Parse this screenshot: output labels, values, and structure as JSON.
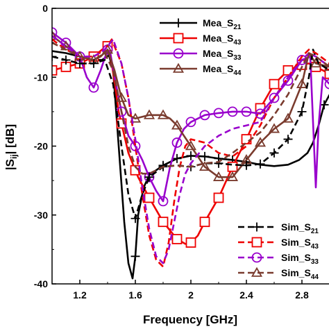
{
  "chart_data": {
    "type": "line",
    "title": "",
    "xlabel": "Frequency [GHz]",
    "ylabel_main": "|S",
    "ylabel_sub": "ij",
    "ylabel_tail": "| [dB]",
    "xlim": [
      1.0,
      3.0
    ],
    "ylim": [
      -40,
      0
    ],
    "x_ticks": [
      1.2,
      1.6,
      2.0,
      2.4,
      2.8
    ],
    "x_tick_labels": [
      "1.2",
      "1.6",
      "2",
      "2.4",
      "2.8"
    ],
    "y_ticks": [
      0,
      -10,
      -20,
      -30,
      -40
    ],
    "y_tick_labels": [
      "0",
      "-10",
      "-20",
      "-30",
      "-40"
    ],
    "grid": false,
    "legends": [
      {
        "position": "top-right",
        "series": [
          "mea_s21",
          "mea_s43",
          "mea_s33",
          "mea_s44"
        ]
      },
      {
        "position": "bottom-right",
        "series": [
          "sim_s21",
          "sim_s43",
          "sim_s33",
          "sim_s44"
        ]
      }
    ],
    "series": [
      {
        "id": "mea_s21",
        "name": "Mea_S",
        "sub": "21",
        "color": "#000000",
        "dash": "solid",
        "marker": "plus",
        "x": [
          1.0,
          1.1,
          1.2,
          1.3,
          1.36,
          1.41,
          1.44,
          1.48,
          1.52,
          1.55,
          1.58,
          1.6,
          1.62,
          1.66,
          1.7,
          1.8,
          1.9,
          2.0,
          2.1,
          2.2,
          2.3,
          2.4,
          2.5,
          2.6,
          2.7,
          2.78,
          2.84,
          2.88,
          2.92,
          2.96,
          3.0
        ],
        "y": [
          -6.2,
          -6.5,
          -7.0,
          -7.5,
          -7.5,
          -6.8,
          -9.0,
          -20.0,
          -31.0,
          -37.0,
          -39.2,
          -36.0,
          -30.0,
          -26.0,
          -24.2,
          -22.8,
          -21.8,
          -21.4,
          -21.5,
          -21.8,
          -22.0,
          -22.3,
          -22.7,
          -22.9,
          -22.7,
          -22.0,
          -21.0,
          -19.5,
          -17.0,
          -14.0,
          -12.5
        ],
        "marker_x": [
          1.3,
          1.6,
          1.8,
          1.9,
          2.0,
          2.1,
          2.2,
          2.3,
          2.4,
          2.96
        ]
      },
      {
        "id": "mea_s43",
        "name": "Mea_S",
        "sub": "43",
        "color": "#ee0000",
        "dash": "solid",
        "marker": "square",
        "x": [
          1.0,
          1.1,
          1.2,
          1.3,
          1.36,
          1.4,
          1.43,
          1.48,
          1.55,
          1.62,
          1.7,
          1.8,
          1.9,
          1.96,
          2.0,
          2.05,
          2.1,
          2.2,
          2.3,
          2.4,
          2.5,
          2.6,
          2.7,
          2.8,
          2.85,
          2.9,
          2.95,
          3.0
        ],
        "y": [
          -9.0,
          -8.5,
          -8.0,
          -7.0,
          -6.0,
          -5.5,
          -8.0,
          -15.0,
          -21.0,
          -24.5,
          -27.5,
          -31.0,
          -33.5,
          -34.2,
          -34.0,
          -33.0,
          -31.0,
          -27.5,
          -23.0,
          -19.0,
          -14.5,
          -11.0,
          -9.0,
          -8.2,
          -8.0,
          -8.5,
          -9.0,
          -9.5
        ],
        "marker_x": [
          1.0,
          1.1,
          1.2,
          1.3,
          1.4,
          1.5,
          1.6,
          1.7,
          1.8,
          1.9,
          2.0,
          2.1,
          2.2,
          2.3,
          2.4,
          2.5,
          2.6,
          2.7,
          2.8,
          2.9,
          3.0
        ]
      },
      {
        "id": "mea_s33",
        "name": "Mea_S",
        "sub": "33",
        "color": "#9900cc",
        "dash": "solid",
        "marker": "circle",
        "x": [
          1.0,
          1.1,
          1.2,
          1.25,
          1.3,
          1.35,
          1.4,
          1.42,
          1.45,
          1.5,
          1.55,
          1.6,
          1.65,
          1.7,
          1.75,
          1.8,
          1.85,
          1.9,
          1.95,
          2.0,
          2.1,
          2.2,
          2.3,
          2.4,
          2.5,
          2.6,
          2.7,
          2.8,
          2.86,
          2.9,
          2.92,
          2.95,
          3.0
        ],
        "y": [
          -3.5,
          -5.0,
          -7.0,
          -10.0,
          -11.5,
          -9.0,
          -6.0,
          -6.5,
          -10.0,
          -15.0,
          -18.5,
          -20.0,
          -22.0,
          -24.5,
          -26.5,
          -28.0,
          -23.0,
          -19.5,
          -17.5,
          -16.5,
          -15.5,
          -15.2,
          -15.0,
          -15.0,
          -15.3,
          -13.0,
          -10.5,
          -7.5,
          -7.0,
          -26.0,
          -17.0,
          -10.0,
          -11.0
        ],
        "marker_x": [
          1.0,
          1.1,
          1.2,
          1.3,
          1.4,
          1.5,
          1.6,
          1.7,
          1.8,
          1.9,
          2.0,
          2.1,
          2.2,
          2.3,
          2.4,
          2.5,
          2.6,
          2.7,
          2.8,
          3.0
        ]
      },
      {
        "id": "mea_s44",
        "name": "Mea_S",
        "sub": "44",
        "color": "#7a3b2e",
        "dash": "solid",
        "marker": "triangle",
        "x": [
          1.0,
          1.1,
          1.2,
          1.3,
          1.35,
          1.4,
          1.45,
          1.5,
          1.55,
          1.6,
          1.7,
          1.8,
          1.85,
          1.9,
          2.0,
          2.1,
          2.2,
          2.3,
          2.4,
          2.5,
          2.6,
          2.7,
          2.8,
          2.85,
          2.9,
          3.0
        ],
        "y": [
          -4.0,
          -5.5,
          -7.0,
          -7.5,
          -7.0,
          -6.0,
          -9.0,
          -13.0,
          -15.5,
          -16.0,
          -15.5,
          -15.5,
          -16.0,
          -17.0,
          -20.0,
          -23.0,
          -24.5,
          -24.5,
          -22.0,
          -19.5,
          -17.5,
          -16.0,
          -11.0,
          -6.5,
          -8.0,
          -8.5
        ],
        "marker_x": [
          1.0,
          1.1,
          1.2,
          1.3,
          1.4,
          1.5,
          1.6,
          1.7,
          1.8,
          1.9,
          2.0,
          2.1,
          2.2,
          2.3,
          2.4,
          2.5,
          2.6,
          2.7,
          2.8,
          2.9,
          3.0
        ]
      },
      {
        "id": "sim_s21",
        "name": "Sim_S",
        "sub": "21",
        "color": "#000000",
        "dash": "dash",
        "marker": "plus",
        "x": [
          1.0,
          1.1,
          1.2,
          1.3,
          1.38,
          1.44,
          1.5,
          1.55,
          1.6,
          1.65,
          1.7,
          1.8,
          1.9,
          2.0,
          2.1,
          2.2,
          2.3,
          2.4,
          2.5,
          2.6,
          2.7,
          2.8,
          2.85,
          2.88,
          2.92,
          3.0
        ],
        "y": [
          -7.0,
          -7.5,
          -8.0,
          -8.0,
          -7.5,
          -11.0,
          -20.0,
          -27.0,
          -30.5,
          -27.0,
          -24.5,
          -23.0,
          -22.8,
          -23.0,
          -22.5,
          -22.5,
          -22.7,
          -22.8,
          -22.6,
          -21.0,
          -19.0,
          -15.0,
          -10.0,
          -6.0,
          -8.0,
          -9.0
        ],
        "marker_x": [
          1.0,
          1.1,
          1.2,
          1.3,
          1.6,
          1.7,
          1.8,
          2.0,
          2.2,
          2.4,
          2.5,
          2.6,
          2.7,
          2.8
        ]
      },
      {
        "id": "sim_s43",
        "name": "Sim_S",
        "sub": "43",
        "color": "#ee0000",
        "dash": "dash",
        "marker": "square",
        "x": [
          1.0,
          1.1,
          1.2,
          1.3,
          1.38,
          1.43,
          1.5,
          1.55,
          1.6,
          1.65,
          1.7,
          1.75,
          1.8,
          1.84,
          1.88,
          1.92,
          1.96,
          2.0,
          2.1,
          2.2,
          2.3,
          2.4,
          2.5,
          2.6,
          2.7,
          2.8,
          2.85,
          2.9,
          3.0
        ],
        "y": [
          -4.5,
          -6.0,
          -7.0,
          -7.0,
          -6.0,
          -4.5,
          -8.0,
          -13.0,
          -20.0,
          -27.0,
          -33.0,
          -36.5,
          -37.5,
          -34.0,
          -28.0,
          -23.0,
          -20.0,
          -19.0,
          -19.5,
          -21.0,
          -21.5,
          -20.0,
          -17.0,
          -13.0,
          -10.0,
          -7.0,
          -6.0,
          -6.5,
          -8.0
        ]
      },
      {
        "id": "sim_s33",
        "name": "Sim_S",
        "sub": "33",
        "color": "#9900cc",
        "dash": "dash",
        "marker": "circle",
        "x": [
          1.0,
          1.1,
          1.2,
          1.3,
          1.38,
          1.44,
          1.5,
          1.55,
          1.6,
          1.65,
          1.7,
          1.75,
          1.8,
          1.84,
          1.88,
          1.92,
          1.96,
          2.0,
          2.1,
          2.2,
          2.3,
          2.4,
          2.5,
          2.6,
          2.7,
          2.8,
          2.85,
          2.9,
          3.0
        ],
        "y": [
          -4.0,
          -5.5,
          -7.0,
          -7.0,
          -6.0,
          -4.5,
          -8.0,
          -13.0,
          -19.0,
          -26.0,
          -32.0,
          -36.0,
          -37.0,
          -35.0,
          -31.0,
          -27.0,
          -24.0,
          -22.5,
          -20.0,
          -18.5,
          -17.5,
          -17.0,
          -16.5,
          -13.0,
          -10.0,
          -7.5,
          -6.5,
          -7.0,
          -8.5
        ]
      },
      {
        "id": "sim_s44",
        "name": "Sim_S",
        "sub": "44",
        "color": "#7a3b2e",
        "dash": "dash",
        "marker": "triangle",
        "x": [
          1.0,
          1.1,
          1.2,
          1.3,
          1.38,
          1.44,
          1.5,
          1.55,
          1.6,
          1.65,
          1.7,
          1.8,
          1.9,
          2.0,
          2.1,
          2.2,
          2.3,
          2.4,
          2.5,
          2.6,
          2.7,
          2.8,
          2.85,
          2.9,
          3.0
        ],
        "y": [
          -5.0,
          -6.0,
          -7.0,
          -7.5,
          -6.5,
          -9.0,
          -15.0,
          -20.0,
          -23.0,
          -24.0,
          -24.0,
          -23.0,
          -22.8,
          -23.0,
          -22.5,
          -22.3,
          -21.0,
          -19.5,
          -18.0,
          -15.5,
          -12.5,
          -8.5,
          -6.5,
          -7.0,
          -8.5
        ]
      }
    ]
  }
}
